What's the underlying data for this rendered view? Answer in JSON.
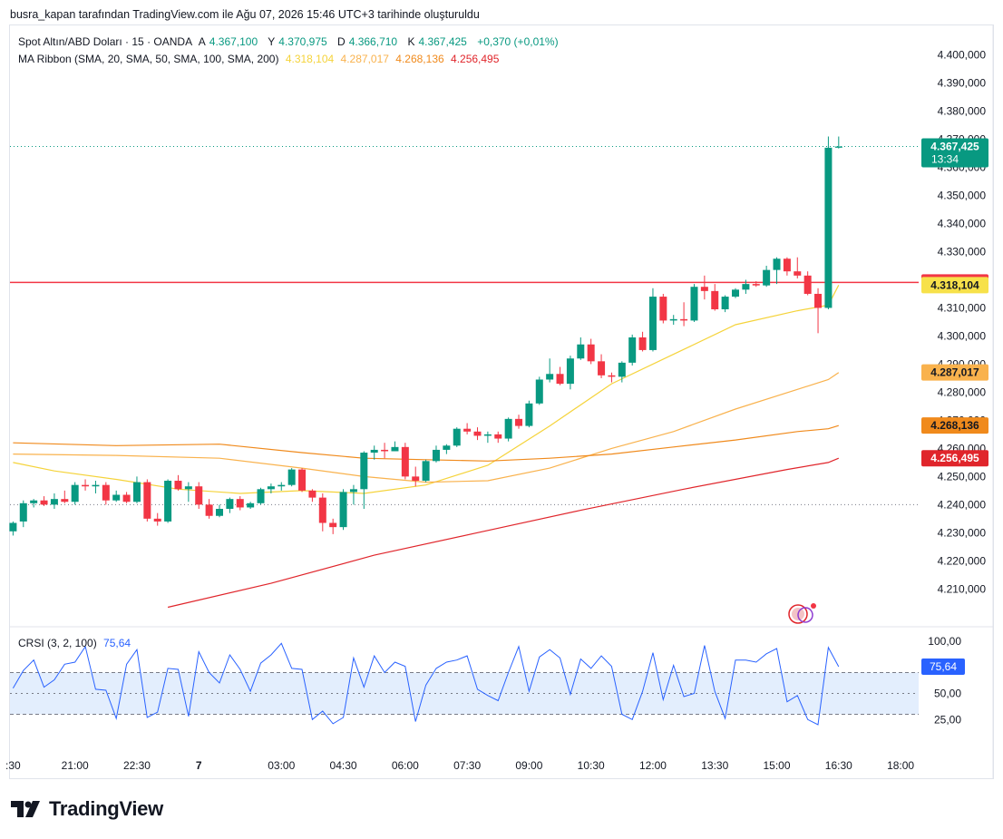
{
  "caption": "busra_kapan tarafından TradingView.com ile Ağu 07, 2026 15:46 UTC+3 tarihinde oluşturuldu",
  "legend": {
    "symbol": "Spot Altın/ABD Doları · 15 · OANDA",
    "o_label": "A",
    "o_value": "4.367,100",
    "h_label": "Y",
    "h_value": "4.370,975",
    "l_label": "D",
    "l_value": "4.366,710",
    "c_label": "K",
    "c_value": "4.367,425",
    "change": "+0,370 (+0,01%)",
    "ribbon_label": "MA Ribbon (SMA, 20, SMA, 50, SMA, 100, SMA, 200)",
    "ma20": "4.318,104",
    "ma50": "4.287,017",
    "ma100": "4.268,136",
    "ma200": "4.256,495"
  },
  "rsi_legend": {
    "label": "CRSI (3, 2, 100)",
    "value": "75,64"
  },
  "brand": "TradingView",
  "colors": {
    "up": "#089981",
    "down": "#f23645",
    "ma20": "#f5d33a",
    "ma50": "#f9b24d",
    "ma100": "#f08a1c",
    "ma200": "#e0252b",
    "hline": "#f23645",
    "rsi_line": "#2962ff",
    "rsi_band": "#e3eefd"
  },
  "chart_data": {
    "type": "candlestick",
    "price_axis": {
      "range": [
        4203,
        4406
      ],
      "ticks": [
        "4.400,000",
        "4.390,000",
        "4.380,000",
        "4.370,000",
        "4.360,000",
        "4.350,000",
        "4.340,000",
        "4.330,000",
        "4.320,000",
        "4.310,000",
        "4.300,000",
        "4.290,000",
        "4.280,000",
        "4.270,000",
        "4.260,000",
        "4.250,000",
        "4.240,000",
        "4.230,000",
        "4.220,000",
        "4.210,000"
      ],
      "tick_values": [
        4400,
        4390,
        4380,
        4370,
        4360,
        4350,
        4340,
        4330,
        4320,
        4310,
        4300,
        4290,
        4280,
        4270,
        4260,
        4250,
        4240,
        4230,
        4220,
        4210
      ]
    },
    "time_axis": {
      "labels": [
        ":30",
        "21:00",
        "22:30",
        "7",
        "03:00",
        "04:30",
        "06:00",
        "07:30",
        "09:00",
        "10:30",
        "12:00",
        "13:30",
        "15:00",
        "16:30",
        "18:00"
      ],
      "bar_index": [
        0,
        6,
        12,
        18,
        26,
        32,
        38,
        44,
        50,
        56,
        62,
        68,
        74,
        80,
        86
      ],
      "bold": [
        false,
        false,
        false,
        true,
        false,
        false,
        false,
        false,
        false,
        false,
        false,
        false,
        false,
        false,
        false
      ]
    },
    "candles": [
      [
        4230.5,
        4234.0,
        4229.0,
        4233.5
      ],
      [
        4234.0,
        4241.5,
        4232.0,
        4240.5
      ],
      [
        4240.5,
        4242.0,
        4239.0,
        4241.5
      ],
      [
        4241.5,
        4243.0,
        4239.5,
        4240.0
      ],
      [
        4240.0,
        4244.0,
        4238.5,
        4242.0
      ],
      [
        4242.0,
        4245.0,
        4240.5,
        4241.0
      ],
      [
        4241.0,
        4248.0,
        4240.0,
        4247.0
      ],
      [
        4247.0,
        4249.0,
        4245.0,
        4246.5
      ],
      [
        4246.5,
        4248.5,
        4244.0,
        4247.0
      ],
      [
        4247.0,
        4248.0,
        4240.0,
        4241.5
      ],
      [
        4241.5,
        4245.0,
        4241.0,
        4243.5
      ],
      [
        4243.5,
        4244.5,
        4240.5,
        4241.0
      ],
      [
        4241.0,
        4250.0,
        4240.5,
        4248.0
      ],
      [
        4248.0,
        4249.0,
        4234.0,
        4235.0
      ],
      [
        4235.0,
        4237.0,
        4232.5,
        4234.0
      ],
      [
        4234.0,
        4249.0,
        4233.5,
        4248.5
      ],
      [
        4248.5,
        4250.5,
        4245.0,
        4245.5
      ],
      [
        4245.5,
        4248.0,
        4241.0,
        4246.5
      ],
      [
        4246.5,
        4248.0,
        4238.5,
        4240.0
      ],
      [
        4240.0,
        4242.0,
        4235.0,
        4236.0
      ],
      [
        4236.0,
        4240.0,
        4235.5,
        4238.5
      ],
      [
        4238.5,
        4242.5,
        4237.0,
        4242.0
      ],
      [
        4242.0,
        4243.0,
        4238.0,
        4239.0
      ],
      [
        4239.0,
        4241.0,
        4238.5,
        4240.5
      ],
      [
        4240.5,
        4246.0,
        4240.0,
        4245.5
      ],
      [
        4245.5,
        4247.5,
        4244.0,
        4246.5
      ],
      [
        4246.5,
        4248.0,
        4245.0,
        4247.0
      ],
      [
        4247.0,
        4253.0,
        4246.5,
        4252.5
      ],
      [
        4252.5,
        4253.0,
        4244.5,
        4245.0
      ],
      [
        4245.0,
        4245.5,
        4241.0,
        4242.5
      ],
      [
        4242.5,
        4244.0,
        4230.5,
        4233.5
      ],
      [
        4233.5,
        4235.0,
        4229.5,
        4232.0
      ],
      [
        4232.0,
        4245.5,
        4231.0,
        4244.5
      ],
      [
        4244.5,
        4247.0,
        4240.0,
        4245.5
      ],
      [
        4245.5,
        4259.0,
        4238.5,
        4258.5
      ],
      [
        4258.5,
        4261.0,
        4256.0,
        4259.5
      ],
      [
        4259.5,
        4262.0,
        4256.5,
        4259.0
      ],
      [
        4259.0,
        4262.5,
        4259.0,
        4260.5
      ],
      [
        4260.5,
        4262.0,
        4249.0,
        4250.0
      ],
      [
        4250.0,
        4253.5,
        4246.5,
        4248.5
      ],
      [
        4248.5,
        4256.0,
        4248.0,
        4255.5
      ],
      [
        4255.5,
        4261.0,
        4255.0,
        4259.5
      ],
      [
        4259.5,
        4261.5,
        4258.0,
        4261.0
      ],
      [
        4261.0,
        4267.5,
        4260.5,
        4267.0
      ],
      [
        4267.0,
        4269.0,
        4265.0,
        4266.0
      ],
      [
        4266.0,
        4267.5,
        4263.0,
        4264.5
      ],
      [
        4264.5,
        4266.0,
        4262.0,
        4265.0
      ],
      [
        4265.0,
        4266.0,
        4262.0,
        4263.5
      ],
      [
        4263.5,
        4271.0,
        4262.5,
        4270.5
      ],
      [
        4270.5,
        4272.0,
        4267.0,
        4268.0
      ],
      [
        4268.0,
        4277.0,
        4267.5,
        4276.0
      ],
      [
        4276.0,
        4285.5,
        4275.5,
        4284.5
      ],
      [
        4284.5,
        4292.0,
        4283.5,
        4286.5
      ],
      [
        4286.5,
        4289.0,
        4282.5,
        4283.0
      ],
      [
        4283.0,
        4293.0,
        4281.0,
        4292.0
      ],
      [
        4292.0,
        4299.5,
        4291.5,
        4297.0
      ],
      [
        4297.0,
        4299.0,
        4290.0,
        4291.0
      ],
      [
        4291.0,
        4293.5,
        4285.0,
        4286.0
      ],
      [
        4286.0,
        4287.0,
        4283.5,
        4285.5
      ],
      [
        4285.5,
        4291.0,
        4283.5,
        4290.5
      ],
      [
        4290.5,
        4300.5,
        4289.5,
        4299.5
      ],
      [
        4299.5,
        4301.5,
        4294.5,
        4295.0
      ],
      [
        4295.0,
        4317.0,
        4294.5,
        4314.0
      ],
      [
        4314.0,
        4315.0,
        4304.5,
        4305.5
      ],
      [
        4305.5,
        4307.5,
        4304.0,
        4306.0
      ],
      [
        4306.0,
        4312.0,
        4303.5,
        4305.5
      ],
      [
        4305.5,
        4318.5,
        4305.0,
        4317.5
      ],
      [
        4317.5,
        4321.5,
        4313.0,
        4316.0
      ],
      [
        4316.0,
        4318.5,
        4309.0,
        4309.5
      ],
      [
        4309.5,
        4314.5,
        4308.5,
        4314.0
      ],
      [
        4314.0,
        4317.0,
        4313.5,
        4316.5
      ],
      [
        4316.5,
        4320.0,
        4315.0,
        4318.5
      ],
      [
        4318.5,
        4319.5,
        4317.5,
        4318.0
      ],
      [
        4318.0,
        4325.0,
        4317.5,
        4323.5
      ],
      [
        4323.5,
        4328.0,
        4318.5,
        4327.5
      ],
      [
        4327.5,
        4328.0,
        4321.5,
        4323.0
      ],
      [
        4323.0,
        4328.0,
        4320.5,
        4321.5
      ],
      [
        4321.5,
        4323.0,
        4314.5,
        4315.0
      ],
      [
        4315.0,
        4317.0,
        4301.0,
        4310.0
      ],
      [
        4310.0,
        4371.0,
        4309.5,
        4367.0
      ],
      [
        4367.0,
        4370.975,
        4366.71,
        4367.425
      ]
    ],
    "series": [
      {
        "name": "SMA 20",
        "points": [
          [
            0,
            4255.0
          ],
          [
            4,
            4252.0
          ],
          [
            10,
            4249.0
          ],
          [
            16,
            4245.5
          ],
          [
            22,
            4244.0
          ],
          [
            28,
            4245.0
          ],
          [
            34,
            4244.0
          ],
          [
            40,
            4247.0
          ],
          [
            46,
            4254.0
          ],
          [
            52,
            4268.0
          ],
          [
            58,
            4283.0
          ],
          [
            64,
            4293.5
          ],
          [
            70,
            4304.0
          ],
          [
            76,
            4309.0
          ],
          [
            79,
            4311.0
          ],
          [
            80,
            4318.104
          ]
        ]
      },
      {
        "name": "SMA 50",
        "points": [
          [
            0,
            4258.0
          ],
          [
            10,
            4257.5
          ],
          [
            20,
            4256.5
          ],
          [
            28,
            4253.0
          ],
          [
            34,
            4250.0
          ],
          [
            40,
            4248.0
          ],
          [
            46,
            4248.5
          ],
          [
            52,
            4253.0
          ],
          [
            58,
            4260.0
          ],
          [
            64,
            4266.0
          ],
          [
            70,
            4274.0
          ],
          [
            76,
            4281.0
          ],
          [
            79,
            4284.5
          ],
          [
            80,
            4287.017
          ]
        ]
      },
      {
        "name": "SMA 100",
        "points": [
          [
            0,
            4262.0
          ],
          [
            10,
            4261.0
          ],
          [
            20,
            4261.5
          ],
          [
            28,
            4258.5
          ],
          [
            34,
            4256.5
          ],
          [
            40,
            4256.0
          ],
          [
            46,
            4255.5
          ],
          [
            52,
            4256.5
          ],
          [
            58,
            4258.0
          ],
          [
            64,
            4260.5
          ],
          [
            70,
            4263.0
          ],
          [
            76,
            4266.0
          ],
          [
            79,
            4267.0
          ],
          [
            80,
            4268.136
          ]
        ]
      },
      {
        "name": "SMA 200",
        "points": [
          [
            15,
            4203.5
          ],
          [
            25,
            4212.0
          ],
          [
            35,
            4222.0
          ],
          [
            45,
            4230.0
          ],
          [
            55,
            4238.0
          ],
          [
            65,
            4245.5
          ],
          [
            75,
            4252.5
          ],
          [
            79,
            4255.0
          ],
          [
            80,
            4256.495
          ]
        ]
      }
    ],
    "hline": {
      "value": 4319.071,
      "label": "4.319,071"
    },
    "dotted_level": 4240,
    "last_price": {
      "value": 4367.425,
      "label": "4.367,425",
      "countdown": "13:34"
    },
    "ma_badges": [
      {
        "value": 4318.104,
        "label": "4.318,104"
      },
      {
        "value": 4287.017,
        "label": "4.287,017"
      },
      {
        "value": 4268.136,
        "label": "4.268,136"
      },
      {
        "value": 4256.495,
        "label": "4.256,495"
      }
    ],
    "rsi": {
      "name": "CRSI (3, 2, 100)",
      "range": [
        0,
        100
      ],
      "ticks": [
        "100,00",
        "50,00",
        "25,00"
      ],
      "tick_values": [
        100,
        50,
        25
      ],
      "band": [
        30,
        70
      ],
      "last": {
        "value": 75.64,
        "label": "75,64"
      },
      "values": [
        55,
        72,
        82,
        56,
        63,
        78,
        80,
        95,
        54,
        53,
        26,
        78,
        92,
        27,
        32,
        74,
        73,
        28,
        90,
        70,
        60,
        87,
        73,
        52,
        79,
        87,
        98,
        74,
        73,
        25,
        33,
        21,
        27,
        84,
        56,
        86,
        70,
        80,
        76,
        23,
        58,
        74,
        80,
        82,
        86,
        54,
        48,
        43,
        70,
        95,
        52,
        85,
        92,
        84,
        49,
        83,
        74,
        86,
        76,
        30,
        25,
        52,
        89,
        44,
        77,
        47,
        50,
        96,
        52,
        26,
        82,
        82,
        80,
        88,
        93,
        42,
        48,
        25,
        20,
        94,
        75.64
      ]
    }
  }
}
